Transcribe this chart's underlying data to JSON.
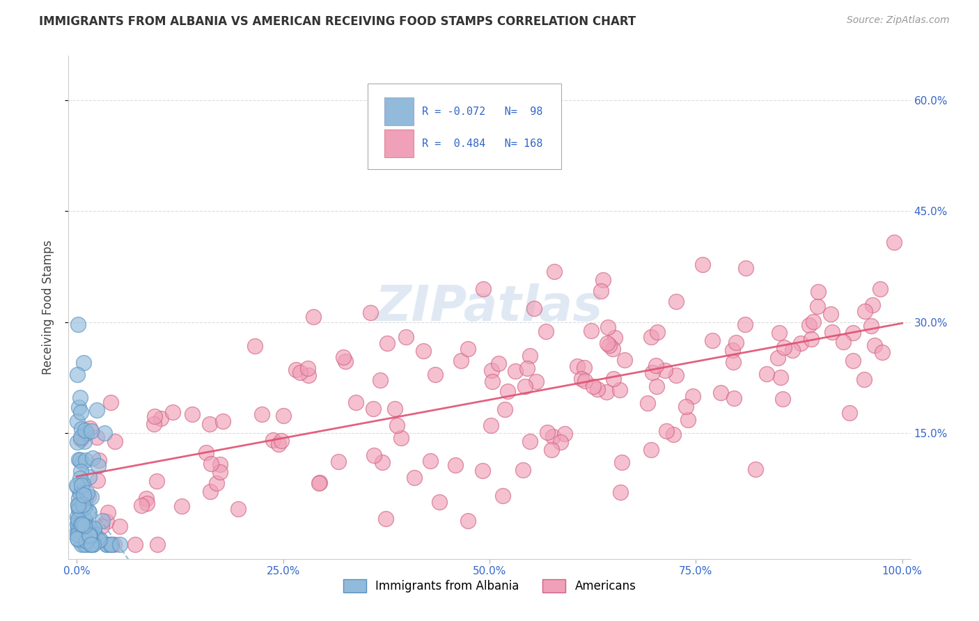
{
  "title": "IMMIGRANTS FROM ALBANIA VS AMERICAN RECEIVING FOOD STAMPS CORRELATION CHART",
  "source": "Source: ZipAtlas.com",
  "ylabel": "Receiving Food Stamps",
  "watermark": "ZIPatlas",
  "albania_color": "#92bbdb",
  "albania_edge": "#5590c0",
  "american_color": "#f0a0b8",
  "american_edge": "#d06080",
  "trendline_albania_color": "#88aacc",
  "trendline_american_color": "#e05070",
  "background_color": "#ffffff",
  "grid_color": "#cccccc",
  "xlim": [
    -0.01,
    1.01
  ],
  "ylim": [
    -0.02,
    0.66
  ],
  "xticks": [
    0,
    0.25,
    0.5,
    0.75,
    1.0
  ],
  "xticklabels": [
    "0.0%",
    "25.0%",
    "50.0%",
    "75.0%",
    "100.0%"
  ],
  "ytick_positions": [
    0.15,
    0.3,
    0.45,
    0.6
  ],
  "yticklabels_right": [
    "15.0%",
    "30.0%",
    "45.0%",
    "60.0%"
  ],
  "albania_R": -0.072,
  "albania_N": 98,
  "american_R": 0.484,
  "american_N": 168,
  "legend_label1": "Immigrants from Albania",
  "legend_label2": "Americans",
  "seed": 42
}
